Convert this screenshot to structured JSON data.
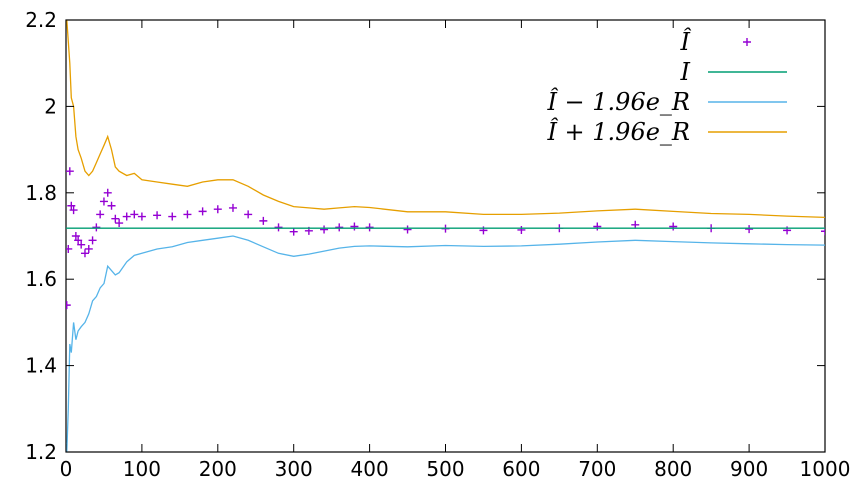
{
  "chart_data": {
    "type": "line",
    "xlim": [
      0,
      1000
    ],
    "ylim": [
      1.2,
      2.2
    ],
    "x_ticks": [
      "0",
      "100",
      "200",
      "300",
      "400",
      "500",
      "600",
      "700",
      "800",
      "900",
      "1000"
    ],
    "y_ticks": [
      "1.2",
      "1.4",
      "1.6",
      "1.8",
      "2",
      "2.2"
    ],
    "legend_position": "top-right",
    "grid": false,
    "series": [
      {
        "name": "Î",
        "style": "points",
        "color": "#9400d3",
        "x": [
          1,
          3,
          5,
          7,
          10,
          13,
          16,
          20,
          25,
          30,
          35,
          40,
          45,
          50,
          55,
          60,
          65,
          70,
          80,
          90,
          100,
          120,
          140,
          160,
          180,
          200,
          220,
          240,
          260,
          280,
          300,
          320,
          340,
          360,
          380,
          400,
          450,
          500,
          550,
          600,
          650,
          700,
          750,
          800,
          850,
          900,
          950,
          1000
        ],
        "y": [
          1.54,
          1.67,
          1.85,
          1.77,
          1.76,
          1.7,
          1.69,
          1.68,
          1.66,
          1.67,
          1.69,
          1.72,
          1.75,
          1.78,
          1.8,
          1.77,
          1.74,
          1.73,
          1.745,
          1.75,
          1.745,
          1.748,
          1.745,
          1.75,
          1.757,
          1.762,
          1.765,
          1.75,
          1.735,
          1.72,
          1.71,
          1.712,
          1.715,
          1.72,
          1.722,
          1.72,
          1.715,
          1.717,
          1.713,
          1.714,
          1.718,
          1.722,
          1.726,
          1.722,
          1.718,
          1.716,
          1.713,
          1.711
        ]
      },
      {
        "name": "I",
        "style": "line",
        "color": "#009e73",
        "x": [
          0,
          1000
        ],
        "y": [
          1.718,
          1.718
        ]
      },
      {
        "name": "Î − 1.96e_R",
        "style": "line",
        "color": "#56b4e9",
        "x": [
          1,
          3,
          5,
          7,
          10,
          13,
          16,
          20,
          25,
          30,
          35,
          40,
          45,
          50,
          55,
          60,
          65,
          70,
          80,
          90,
          100,
          120,
          140,
          160,
          180,
          200,
          220,
          240,
          260,
          280,
          300,
          320,
          340,
          360,
          380,
          400,
          450,
          500,
          550,
          600,
          650,
          700,
          750,
          800,
          850,
          900,
          950,
          1000
        ],
        "y": [
          1.2,
          1.3,
          1.45,
          1.43,
          1.5,
          1.46,
          1.48,
          1.49,
          1.5,
          1.52,
          1.55,
          1.56,
          1.58,
          1.59,
          1.63,
          1.62,
          1.61,
          1.615,
          1.64,
          1.655,
          1.66,
          1.67,
          1.675,
          1.685,
          1.69,
          1.695,
          1.7,
          1.69,
          1.675,
          1.66,
          1.653,
          1.658,
          1.665,
          1.672,
          1.676,
          1.677,
          1.675,
          1.678,
          1.676,
          1.677,
          1.681,
          1.686,
          1.69,
          1.687,
          1.684,
          1.682,
          1.68,
          1.679
        ]
      },
      {
        "name": "Î + 1.96e_R",
        "style": "line",
        "color": "#e69f00",
        "x": [
          1,
          3,
          5,
          7,
          10,
          13,
          16,
          20,
          25,
          30,
          35,
          40,
          45,
          50,
          55,
          60,
          65,
          70,
          80,
          90,
          100,
          120,
          140,
          160,
          180,
          200,
          220,
          240,
          260,
          280,
          300,
          320,
          340,
          360,
          380,
          400,
          450,
          500,
          550,
          600,
          650,
          700,
          750,
          800,
          850,
          900,
          950,
          1000
        ],
        "y": [
          2.2,
          2.15,
          2.1,
          2.02,
          2.0,
          1.93,
          1.9,
          1.88,
          1.85,
          1.84,
          1.85,
          1.87,
          1.89,
          1.91,
          1.93,
          1.9,
          1.86,
          1.85,
          1.84,
          1.845,
          1.83,
          1.825,
          1.82,
          1.815,
          1.825,
          1.83,
          1.83,
          1.815,
          1.795,
          1.78,
          1.768,
          1.765,
          1.762,
          1.765,
          1.768,
          1.766,
          1.756,
          1.756,
          1.75,
          1.75,
          1.753,
          1.758,
          1.762,
          1.757,
          1.752,
          1.75,
          1.746,
          1.743
        ]
      }
    ]
  }
}
